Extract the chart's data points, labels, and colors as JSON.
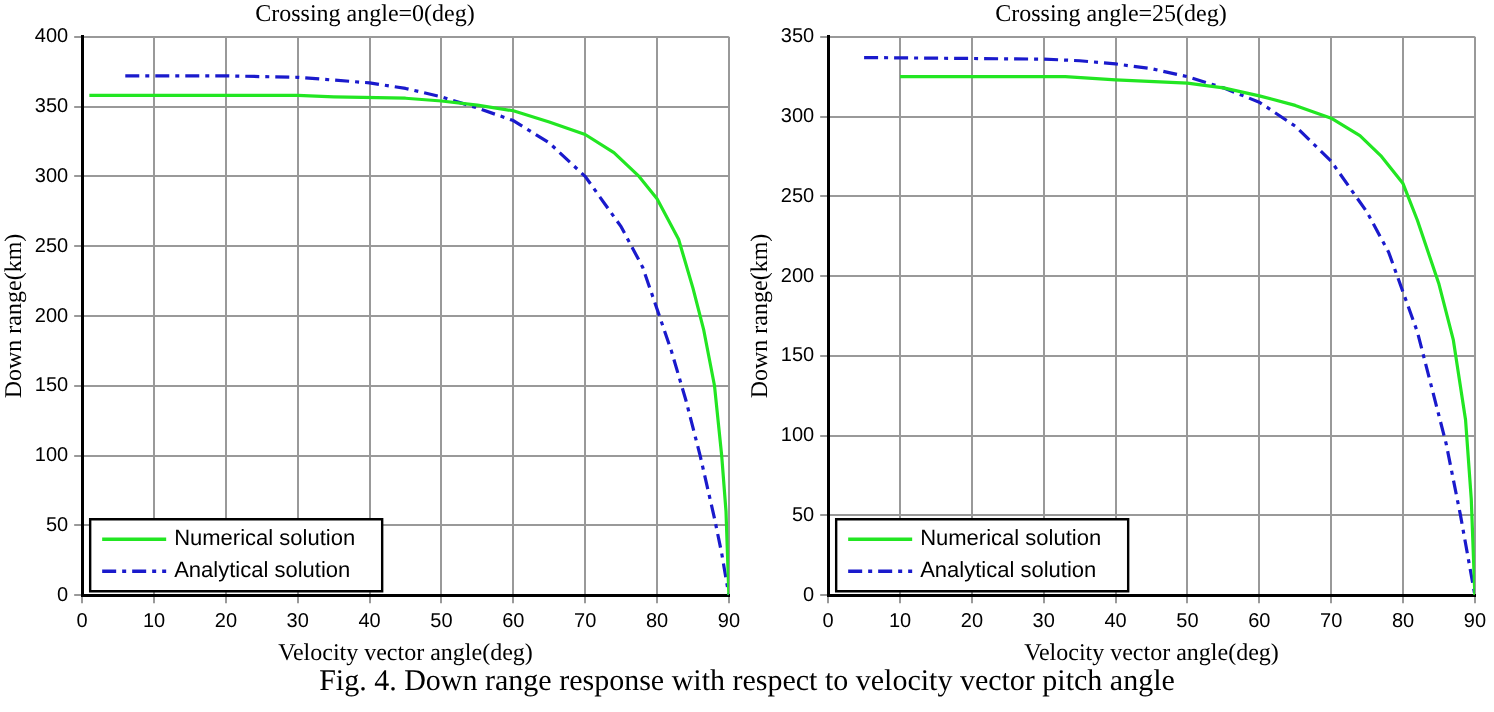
{
  "chart_data": [
    {
      "type": "line",
      "title": "Crossing angle=0(deg)",
      "xlabel": "Velocity vector angle(deg)",
      "ylabel": "Down range(km)",
      "xlim": [
        0,
        90
      ],
      "xticks": [
        0,
        10,
        20,
        30,
        40,
        50,
        60,
        70,
        80,
        90
      ],
      "ylim": [
        0,
        400
      ],
      "yticks": [
        0,
        50,
        100,
        150,
        200,
        250,
        300,
        350,
        400
      ],
      "grid": true,
      "legend": "bottom left",
      "annotations": [
        "Fig. 4. Down range response with respect to velocity vector pitch angle"
      ],
      "series": [
        {
          "name": "Numerical solution",
          "color": "#22e622",
          "line_style": "solid",
          "x": [
            1,
            10,
            20,
            30,
            35,
            45,
            50,
            55,
            60,
            65,
            70,
            74,
            77.5,
            80,
            83,
            85,
            86.5,
            88,
            89,
            89.6,
            90
          ],
          "values": [
            358,
            358,
            358,
            358,
            357,
            356,
            354,
            351,
            347,
            339,
            330,
            317,
            300,
            284,
            255,
            220,
            190,
            150,
            100,
            60,
            0
          ]
        },
        {
          "name": "Analytical solution",
          "color": "#1a1acc",
          "line_style": "dashed",
          "x": [
            6,
            20,
            30,
            35,
            40,
            45,
            50,
            55,
            60,
            65,
            70,
            75,
            78,
            80,
            82,
            84,
            86,
            88,
            89,
            90
          ],
          "values": [
            372,
            372,
            371,
            369,
            367,
            363,
            357,
            349,
            340,
            324,
            300,
            264,
            235,
            205,
            175,
            140,
            100,
            55,
            30,
            0
          ]
        }
      ]
    },
    {
      "type": "line",
      "title": "Crossing angle=25(deg)",
      "xlabel": "Velocity vector angle(deg)",
      "ylabel": "Down range(km)",
      "xlim": [
        0,
        90
      ],
      "xticks": [
        0,
        10,
        20,
        30,
        40,
        50,
        60,
        70,
        80,
        90
      ],
      "ylim": [
        0,
        350
      ],
      "yticks": [
        0,
        50,
        100,
        150,
        200,
        250,
        300,
        350
      ],
      "grid": true,
      "legend": "bottom left",
      "series": [
        {
          "name": "Numerical solution",
          "color": "#22e622",
          "line_style": "solid",
          "x": [
            10,
            20,
            33,
            40,
            50,
            55,
            60,
            65,
            70,
            74,
            77,
            80,
            82,
            85,
            87,
            88.7,
            89.5,
            90
          ],
          "values": [
            325,
            325,
            325,
            323,
            321,
            318,
            313,
            307,
            299,
            288,
            275,
            258,
            235,
            195,
            160,
            110,
            60,
            0
          ]
        },
        {
          "name": "Analytical solution",
          "color": "#1a1acc",
          "line_style": "dashed",
          "x": [
            5,
            30,
            35,
            40,
            45,
            50,
            55,
            60,
            65,
            70,
            75,
            78,
            80,
            82,
            84,
            86,
            88,
            89,
            90
          ],
          "values": [
            337,
            336,
            335,
            333,
            330,
            325,
            318,
            309,
            294,
            272,
            240,
            215,
            190,
            165,
            130,
            95,
            50,
            25,
            0
          ]
        }
      ]
    }
  ]
}
